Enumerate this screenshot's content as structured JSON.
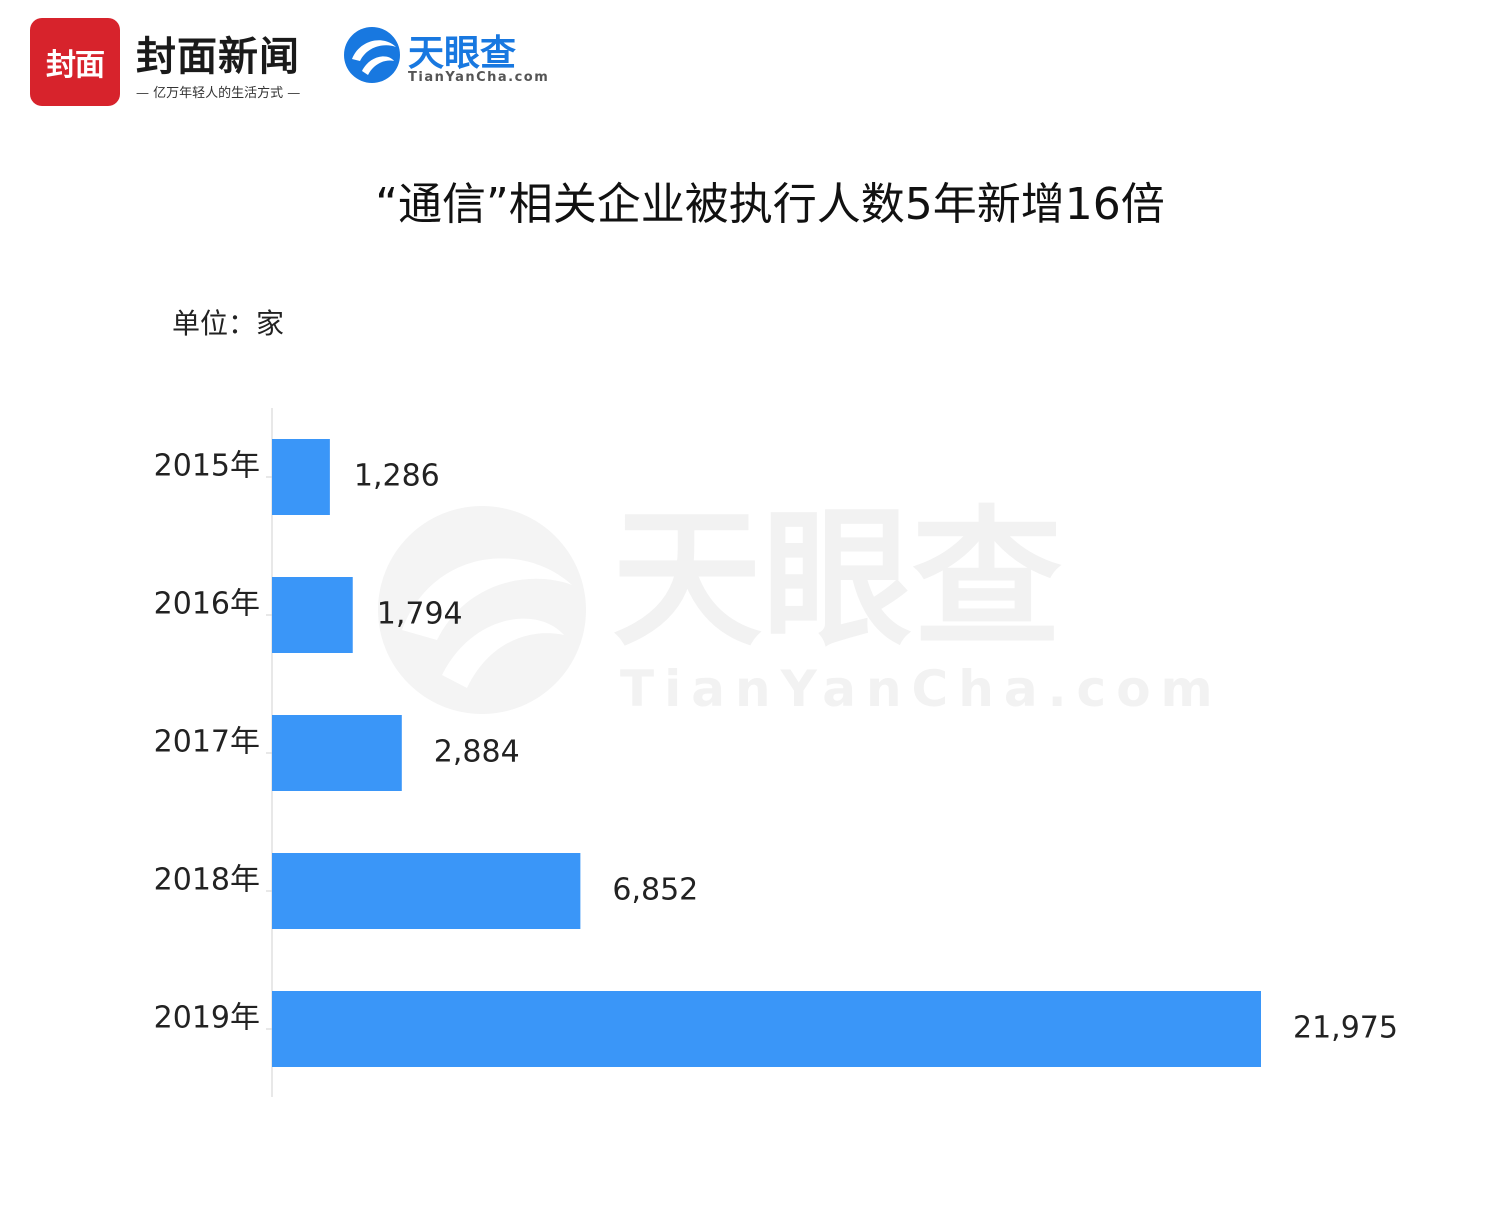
{
  "header": {
    "fm_logo_text": "封面",
    "fm_name": "封面新闻",
    "fm_slogan": "— 亿万年轻人的生活方式 —",
    "tyc_name": "天眼查",
    "tyc_domain": "TianYanCha.com"
  },
  "watermark": {
    "text": "天眼查",
    "domain": "TianYanCha.com"
  },
  "colors": {
    "bar": "#3a96f8",
    "axis": "#d0d0d0",
    "fm_red": "#d7232c",
    "tyc_blue": "#1878e0"
  },
  "chart_data": {
    "type": "bar",
    "orientation": "horizontal",
    "title": "“通信”相关企业被执行人数5年新增16倍",
    "unit": "单位：家",
    "categories": [
      "2015年",
      "2016年",
      "2017年",
      "2018年",
      "2019年"
    ],
    "values": [
      1286,
      1794,
      2884,
      6852,
      21975
    ],
    "value_labels": [
      "1,286",
      "1,794",
      "2,884",
      "6,852",
      "21,975"
    ],
    "xlim": [
      0,
      21975
    ],
    "grid": false,
    "legend": "none"
  }
}
